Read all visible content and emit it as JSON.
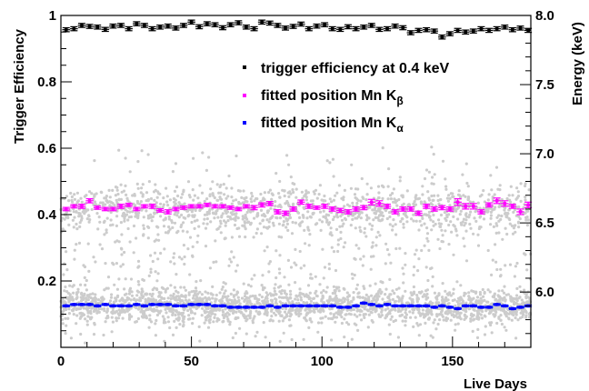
{
  "chart_data": {
    "type": "scatter",
    "xlabel": "Live Days",
    "ylabel_left": "Trigger Efficiency",
    "ylabel_right": "Energy (keV)",
    "xlim": [
      0,
      180
    ],
    "ylim_left": [
      0,
      1
    ],
    "ylim_right": [
      5.6,
      8.0
    ],
    "x_ticks": [
      "0",
      "50",
      "100",
      "150"
    ],
    "y_ticks_left": [
      "0.2",
      "0.4",
      "0.6",
      "0.8",
      "1"
    ],
    "y_ticks_right": [
      "6.0",
      "6.5",
      "7.0",
      "7.5",
      "8.0"
    ],
    "legend_position": "top-right",
    "colors": {
      "trigger": "#000000",
      "kbeta": "#ff00ff",
      "kalpha": "#0000ff",
      "kalpha_fit": "#00e5ff",
      "background": "#cccccc"
    },
    "series": [
      {
        "key": "trigger",
        "name": "trigger efficiency at 0.4 keV",
        "axis": "left",
        "x": [
          2,
          5,
          8,
          11,
          14,
          17,
          20,
          23,
          26,
          29,
          32,
          35,
          38,
          41,
          44,
          47,
          50,
          53,
          56,
          59,
          62,
          65,
          68,
          71,
          74,
          77,
          80,
          83,
          86,
          89,
          92,
          95,
          98,
          101,
          104,
          107,
          110,
          113,
          116,
          119,
          122,
          125,
          128,
          131,
          134,
          137,
          140,
          143,
          146,
          149,
          152,
          155,
          158,
          161,
          164,
          167,
          170,
          173,
          176,
          179
        ],
        "y": [
          0.957,
          0.96,
          0.97,
          0.967,
          0.965,
          0.958,
          0.968,
          0.97,
          0.96,
          0.975,
          0.97,
          0.96,
          0.965,
          0.968,
          0.962,
          0.97,
          0.98,
          0.966,
          0.975,
          0.972,
          0.963,
          0.972,
          0.978,
          0.965,
          0.96,
          0.98,
          0.977,
          0.97,
          0.962,
          0.967,
          0.974,
          0.96,
          0.968,
          0.972,
          0.96,
          0.958,
          0.966,
          0.96,
          0.965,
          0.97,
          0.958,
          0.96,
          0.968,
          0.963,
          0.948,
          0.955,
          0.957,
          0.953,
          0.935,
          0.945,
          0.955,
          0.95,
          0.953,
          0.96,
          0.955,
          0.96,
          0.965,
          0.957,
          0.962,
          0.955
        ],
        "err": [
          0.006,
          0.006,
          0.006,
          0.006,
          0.006,
          0.006,
          0.006,
          0.006,
          0.006,
          0.006,
          0.006,
          0.006,
          0.006,
          0.006,
          0.006,
          0.006,
          0.006,
          0.006,
          0.006,
          0.006,
          0.006,
          0.006,
          0.006,
          0.006,
          0.006,
          0.006,
          0.006,
          0.006,
          0.006,
          0.006,
          0.006,
          0.006,
          0.006,
          0.006,
          0.006,
          0.006,
          0.006,
          0.006,
          0.006,
          0.006,
          0.006,
          0.006,
          0.006,
          0.006,
          0.006,
          0.006,
          0.006,
          0.006,
          0.006,
          0.006,
          0.006,
          0.006,
          0.006,
          0.006,
          0.006,
          0.006,
          0.006,
          0.006,
          0.006,
          0.006
        ]
      },
      {
        "key": "kbeta",
        "name": "fitted position Mn K",
        "name_sub": "β",
        "axis": "right",
        "x": [
          2,
          5,
          8,
          11,
          14,
          17,
          20,
          23,
          26,
          29,
          32,
          35,
          38,
          41,
          44,
          47,
          50,
          53,
          56,
          59,
          62,
          65,
          68,
          71,
          74,
          77,
          80,
          83,
          86,
          89,
          92,
          95,
          98,
          101,
          104,
          107,
          110,
          113,
          116,
          119,
          122,
          125,
          128,
          131,
          134,
          137,
          140,
          143,
          146,
          149,
          152,
          155,
          158,
          161,
          164,
          167,
          170,
          173,
          176,
          179
        ],
        "y": [
          6.6,
          6.62,
          6.62,
          6.66,
          6.61,
          6.6,
          6.6,
          6.62,
          6.63,
          6.6,
          6.62,
          6.62,
          6.59,
          6.58,
          6.6,
          6.61,
          6.62,
          6.62,
          6.63,
          6.62,
          6.62,
          6.61,
          6.6,
          6.62,
          6.61,
          6.63,
          6.64,
          6.58,
          6.57,
          6.6,
          6.65,
          6.62,
          6.61,
          6.62,
          6.6,
          6.59,
          6.58,
          6.6,
          6.61,
          6.65,
          6.64,
          6.62,
          6.58,
          6.6,
          6.6,
          6.57,
          6.62,
          6.6,
          6.61,
          6.6,
          6.65,
          6.62,
          6.62,
          6.58,
          6.63,
          6.66,
          6.64,
          6.62,
          6.58,
          6.63
        ],
        "err": [
          0.012,
          0.012,
          0.015,
          0.015,
          0.012,
          0.012,
          0.012,
          0.015,
          0.012,
          0.012,
          0.012,
          0.015,
          0.012,
          0.015,
          0.012,
          0.012,
          0.012,
          0.012,
          0.012,
          0.012,
          0.012,
          0.012,
          0.012,
          0.012,
          0.015,
          0.015,
          0.015,
          0.015,
          0.015,
          0.015,
          0.015,
          0.015,
          0.012,
          0.015,
          0.015,
          0.015,
          0.015,
          0.015,
          0.015,
          0.02,
          0.02,
          0.015,
          0.015,
          0.015,
          0.015,
          0.015,
          0.015,
          0.015,
          0.015,
          0.015,
          0.025,
          0.02,
          0.02,
          0.015,
          0.015,
          0.02,
          0.02,
          0.015,
          0.02,
          0.02
        ]
      },
      {
        "key": "kalpha",
        "name": "fitted position Mn K",
        "name_sub": "α",
        "axis": "right",
        "x": [
          2,
          5,
          8,
          11,
          14,
          17,
          20,
          23,
          26,
          29,
          32,
          35,
          38,
          41,
          44,
          47,
          50,
          53,
          56,
          59,
          62,
          65,
          68,
          71,
          74,
          77,
          80,
          83,
          86,
          89,
          92,
          95,
          98,
          101,
          104,
          107,
          110,
          113,
          116,
          119,
          122,
          125,
          128,
          131,
          134,
          137,
          140,
          143,
          146,
          149,
          152,
          155,
          158,
          161,
          164,
          167,
          170,
          173,
          176,
          179
        ],
        "y": [
          5.9,
          5.91,
          5.91,
          5.91,
          5.9,
          5.91,
          5.9,
          5.9,
          5.9,
          5.91,
          5.9,
          5.91,
          5.91,
          5.91,
          5.9,
          5.9,
          5.91,
          5.91,
          5.91,
          5.9,
          5.9,
          5.89,
          5.89,
          5.89,
          5.89,
          5.89,
          5.9,
          5.89,
          5.9,
          5.9,
          5.9,
          5.9,
          5.9,
          5.9,
          5.9,
          5.89,
          5.89,
          5.9,
          5.92,
          5.91,
          5.9,
          5.91,
          5.9,
          5.9,
          5.9,
          5.9,
          5.9,
          5.89,
          5.9,
          5.89,
          5.88,
          5.9,
          5.9,
          5.89,
          5.89,
          5.91,
          5.9,
          5.88,
          5.89,
          5.9
        ],
        "err": [
          0.006,
          0.006,
          0.006,
          0.006,
          0.006,
          0.006,
          0.006,
          0.006,
          0.006,
          0.006,
          0.006,
          0.006,
          0.006,
          0.006,
          0.006,
          0.006,
          0.006,
          0.006,
          0.006,
          0.006,
          0.006,
          0.006,
          0.006,
          0.006,
          0.006,
          0.006,
          0.006,
          0.006,
          0.006,
          0.006,
          0.006,
          0.006,
          0.006,
          0.006,
          0.006,
          0.006,
          0.006,
          0.006,
          0.006,
          0.006,
          0.006,
          0.006,
          0.006,
          0.006,
          0.006,
          0.006,
          0.006,
          0.006,
          0.006,
          0.006,
          0.006,
          0.006,
          0.006,
          0.006,
          0.006,
          0.006,
          0.006,
          0.006,
          0.006,
          0.006
        ]
      }
    ],
    "background_scatter": {
      "axis": "right",
      "bands": [
        {
          "center": 5.9,
          "spread": 0.12,
          "count": 1800
        },
        {
          "center": 6.6,
          "spread": 0.16,
          "count": 1100
        },
        {
          "center": 6.25,
          "spread": 0.6,
          "count": 700
        }
      ],
      "y_range": [
        5.62,
        7.05
      ],
      "x_range": [
        0,
        180
      ]
    }
  }
}
